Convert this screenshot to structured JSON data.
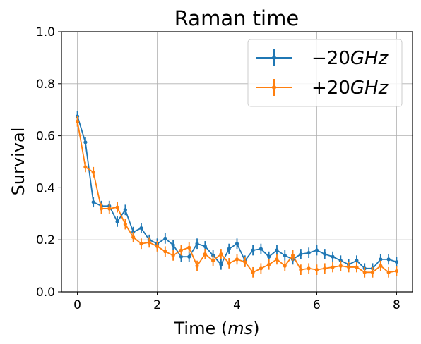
{
  "chart_data": {
    "type": "line",
    "title": "Raman time",
    "xlabel_prefix": "Time (",
    "xlabel_unit": "ms",
    "xlabel_suffix": ")",
    "ylabel": "Survival",
    "xlim": [
      -0.4,
      8.4
    ],
    "ylim": [
      0.0,
      1.0
    ],
    "xticks": [
      0,
      2,
      4,
      6,
      8
    ],
    "yticks": [
      0.0,
      0.2,
      0.4,
      0.6,
      0.8,
      1.0
    ],
    "grid": true,
    "legend_position": "top-right",
    "x": [
      0,
      0.2,
      0.4,
      0.6,
      0.8,
      1.0,
      1.2,
      1.4,
      1.6,
      1.8,
      2.0,
      2.2,
      2.4,
      2.6,
      2.8,
      3.0,
      3.2,
      3.4,
      3.6,
      3.8,
      4.0,
      4.2,
      4.4,
      4.6,
      4.8,
      5.0,
      5.2,
      5.4,
      5.6,
      5.8,
      6.0,
      6.2,
      6.4,
      6.6,
      6.8,
      7.0,
      7.2,
      7.4,
      7.6,
      7.8,
      8.0
    ],
    "series": [
      {
        "name_sign": "−20",
        "name_unit": "GHz",
        "color": "#1f77b4",
        "values": [
          0.675,
          0.575,
          0.345,
          0.33,
          0.33,
          0.27,
          0.315,
          0.23,
          0.245,
          0.2,
          0.185,
          0.205,
          0.18,
          0.135,
          0.135,
          0.185,
          0.175,
          0.14,
          0.105,
          0.165,
          0.185,
          0.12,
          0.16,
          0.165,
          0.135,
          0.16,
          0.14,
          0.125,
          0.145,
          0.15,
          0.16,
          0.145,
          0.135,
          0.12,
          0.105,
          0.12,
          0.09,
          0.09,
          0.125,
          0.125,
          0.115
        ],
        "errors": [
          0.02,
          0.02,
          0.02,
          0.02,
          0.02,
          0.02,
          0.02,
          0.02,
          0.02,
          0.02,
          0.02,
          0.02,
          0.02,
          0.02,
          0.02,
          0.02,
          0.02,
          0.02,
          0.02,
          0.02,
          0.02,
          0.02,
          0.02,
          0.02,
          0.02,
          0.02,
          0.02,
          0.02,
          0.02,
          0.02,
          0.02,
          0.02,
          0.02,
          0.02,
          0.02,
          0.02,
          0.02,
          0.02,
          0.02,
          0.02,
          0.02
        ]
      },
      {
        "name_sign": "+20",
        "name_unit": "GHz",
        "color": "#ff7f0e",
        "values": [
          0.655,
          0.48,
          0.46,
          0.32,
          0.32,
          0.325,
          0.26,
          0.21,
          0.185,
          0.19,
          0.175,
          0.155,
          0.14,
          0.16,
          0.17,
          0.1,
          0.145,
          0.12,
          0.145,
          0.11,
          0.125,
          0.115,
          0.075,
          0.09,
          0.105,
          0.125,
          0.1,
          0.14,
          0.085,
          0.09,
          0.085,
          0.09,
          0.095,
          0.1,
          0.095,
          0.095,
          0.075,
          0.075,
          0.1,
          0.075,
          0.08
        ],
        "errors": [
          0.02,
          0.02,
          0.02,
          0.02,
          0.02,
          0.02,
          0.02,
          0.02,
          0.02,
          0.02,
          0.02,
          0.02,
          0.02,
          0.02,
          0.02,
          0.02,
          0.02,
          0.02,
          0.02,
          0.02,
          0.02,
          0.02,
          0.02,
          0.02,
          0.02,
          0.02,
          0.02,
          0.02,
          0.02,
          0.02,
          0.02,
          0.02,
          0.02,
          0.02,
          0.02,
          0.02,
          0.02,
          0.02,
          0.02,
          0.02,
          0.02
        ]
      }
    ]
  }
}
